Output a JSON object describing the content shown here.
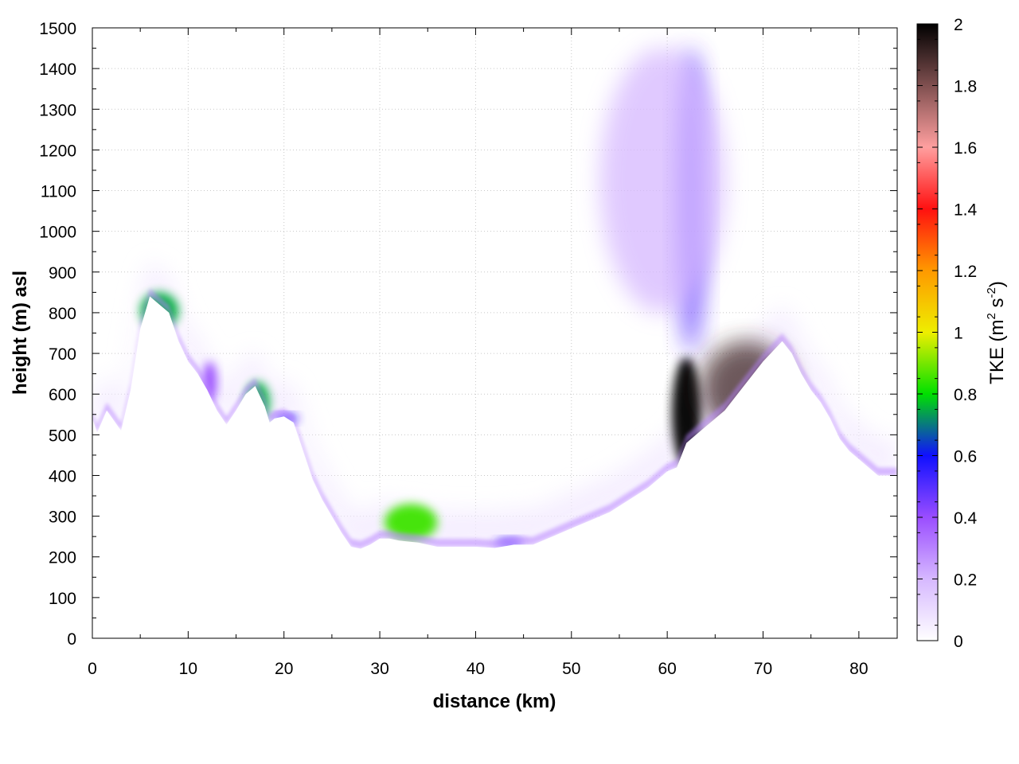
{
  "chart_data": {
    "type": "heatmap",
    "xlabel": "distance (km)",
    "ylabel": "height (m) asl",
    "xlim": [
      0,
      84
    ],
    "ylim": [
      0,
      1500
    ],
    "x_ticks": [
      "0",
      "10",
      "20",
      "30",
      "40",
      "50",
      "60",
      "70",
      "80"
    ],
    "y_ticks": [
      "0",
      "100",
      "200",
      "300",
      "400",
      "500",
      "600",
      "700",
      "800",
      "900",
      "1000",
      "1100",
      "1200",
      "1300",
      "1400",
      "1500"
    ],
    "grid": true,
    "colorbar": {
      "label_main": "TKE (m",
      "label_sup1": "2",
      "label_mid": " s",
      "label_sup2": "-2",
      "label_end": ")",
      "range": [
        0,
        2
      ],
      "ticks": [
        "0",
        "0.2",
        "0.4",
        "0.6",
        "0.8",
        "1",
        "1.2",
        "1.4",
        "1.6",
        "1.8",
        "2"
      ],
      "colors": [
        "#ffffff",
        "#d6b8ff",
        "#9a4dff",
        "#1010ff",
        "#00e000",
        "#eeee00",
        "#ff9900",
        "#ff1010",
        "#ff9f9f",
        "#805050",
        "#000000"
      ]
    },
    "terrain_profile": {
      "x": [
        0,
        0.5,
        1.5,
        3,
        4,
        5,
        6,
        7,
        8,
        9,
        10,
        11,
        12,
        13,
        14,
        15,
        16,
        17,
        18,
        18.5,
        19,
        20,
        21,
        22,
        23,
        24,
        25,
        26,
        27,
        28,
        29,
        30,
        31,
        32,
        34,
        36,
        38,
        40,
        42,
        44,
        46,
        48,
        50,
        52,
        54,
        56,
        58,
        60,
        61,
        62,
        63,
        64,
        66,
        68,
        70,
        72,
        73,
        74,
        75,
        76,
        77,
        78,
        79,
        80,
        81,
        82,
        84
      ],
      "height": [
        540,
        505,
        560,
        510,
        610,
        760,
        840,
        820,
        800,
        730,
        680,
        650,
        610,
        560,
        525,
        560,
        600,
        620,
        570,
        530,
        540,
        545,
        530,
        460,
        390,
        340,
        300,
        260,
        225,
        220,
        230,
        245,
        245,
        240,
        235,
        225,
        225,
        225,
        222,
        230,
        230,
        250,
        270,
        290,
        310,
        340,
        370,
        410,
        420,
        480,
        500,
        520,
        560,
        620,
        680,
        730,
        700,
        650,
        610,
        580,
        540,
        490,
        460,
        440,
        420,
        400,
        400
      ]
    },
    "tke_features": [
      {
        "x": [
          5,
          9
        ],
        "height": [
          760,
          850
        ],
        "tke": 0.75
      },
      {
        "x": [
          11.5,
          13
        ],
        "height": [
          580,
          680
        ],
        "tke": 0.4
      },
      {
        "x": [
          16,
          18.5
        ],
        "height": [
          530,
          630
        ],
        "tke": 0.75
      },
      {
        "x": [
          19,
          21.5
        ],
        "height": [
          530,
          550
        ],
        "tke": 0.55
      },
      {
        "x": [
          30.5,
          36
        ],
        "height": [
          240,
          330
        ],
        "tke": 0.85
      },
      {
        "x": [
          42,
          45
        ],
        "height": [
          225,
          245
        ],
        "tke": 0.5
      },
      {
        "x": [
          60.5,
          63.5
        ],
        "height": [
          420,
          690
        ],
        "tke": 2.0
      },
      {
        "x": [
          63.5,
          73
        ],
        "height": [
          500,
          730
        ],
        "tke": 1.9
      },
      {
        "x": [
          61,
          64
        ],
        "height": [
          700,
          1450
        ],
        "tke": 0.5
      },
      {
        "x": [
          53,
          66
        ],
        "height": [
          800,
          1450
        ],
        "tke": 0.2
      }
    ]
  }
}
